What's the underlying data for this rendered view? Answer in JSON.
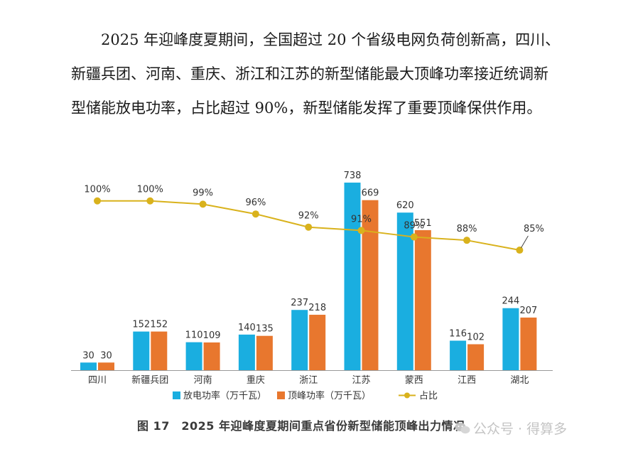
{
  "paragraph": "2025 年迎峰度夏期间，全国超过 20 个省级电网负荷创新高，四川、新疆兵团、河南、重庆、浙江和江苏的新型储能最大顶峰功率接近统调新型储能放电功率，占比超过 90%，新型储能发挥了重要顶峰保供作用。",
  "caption": "图 17　2025 年迎峰度夏期间重点省份新型储能顶峰出力情况",
  "watermark": {
    "text": "公众号 · 得算多",
    "icon": "wechat-icon"
  },
  "chart_data": {
    "type": "bar",
    "categories": [
      "四川",
      "新疆兵团",
      "河南",
      "重庆",
      "浙江",
      "江苏",
      "蒙西",
      "江西",
      "湖北"
    ],
    "series": [
      {
        "name": "放电功率（万千瓦）",
        "type": "bar",
        "color": "#1aaee0",
        "values": [
          30,
          152,
          110,
          140,
          237,
          738,
          620,
          116,
          244
        ]
      },
      {
        "name": "顶峰功率（万千瓦）",
        "type": "bar",
        "color": "#e8772e",
        "values": [
          30,
          152,
          109,
          135,
          218,
          669,
          551,
          102,
          207
        ]
      },
      {
        "name": "占比",
        "type": "line",
        "color": "#d9b21c",
        "values": [
          100,
          100,
          99,
          96,
          92,
          91,
          89,
          88,
          85
        ],
        "labels": [
          "100%",
          "100%",
          "99%",
          "96%",
          "92%",
          "91%",
          "89%",
          "88%",
          "85%"
        ]
      }
    ],
    "ylim": [
      0,
      780
    ],
    "ratio_ylim": [
      40,
      106
    ],
    "grid": false,
    "legend": "bottom"
  }
}
